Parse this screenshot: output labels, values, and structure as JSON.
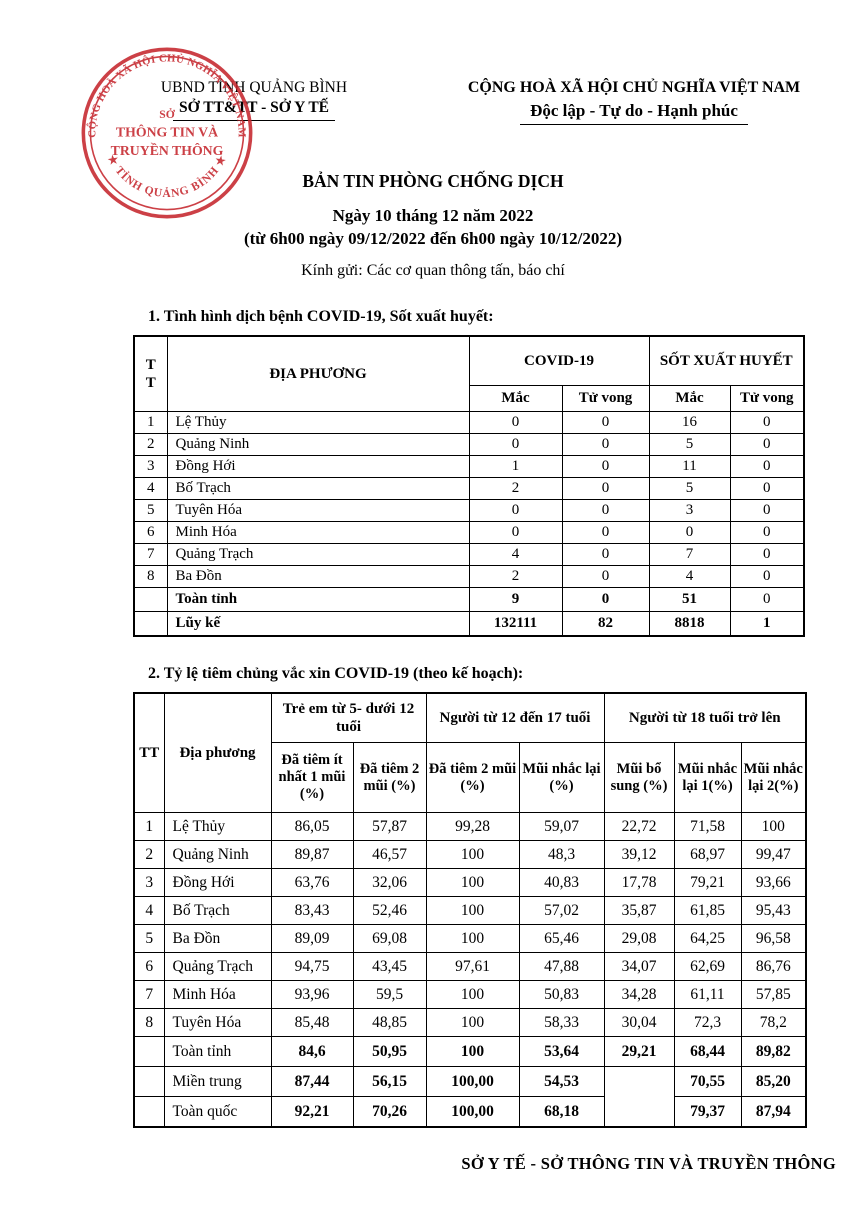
{
  "header": {
    "org": {
      "line1": "UBND TỈNH QUẢNG BÌNH",
      "line2": "SỞ TT&TT - SỞ Y TẾ"
    },
    "national": {
      "line1": "CỘNG HOÀ XÃ HỘI CHỦ NGHĨA VIỆT NAM",
      "line2": "Độc lập - Tự do - Hạnh phúc"
    },
    "stamp": {
      "ring_text": "CỘNG HOÀ XÃ HỘI CHỦ NGHĨA VIỆT NAM",
      "bottom_text": "TỈNH QUẢNG BÌNH",
      "star_left": "★ ",
      "star_right": " ★",
      "center_line1": "SỞ",
      "center_line2": "THÔNG TIN VÀ",
      "center_line3": "TRUYỀN THÔNG",
      "color": "#c5262d"
    }
  },
  "title": {
    "main": "BẢN TIN PHÒNG CHỐNG DỊCH",
    "date_line": "Ngày 10 tháng 12 năm 2022",
    "time_range": "(từ 6h00 ngày 09/12/2022 đến 6h00 ngày 10/12/2022)",
    "recipient": "Kính gửi: Các cơ quan thông tấn, báo chí"
  },
  "section1": {
    "heading": "1. Tình hình dịch bệnh COVID-19, Sốt xuất huyết:",
    "table": {
      "headers": {
        "tt_lines": [
          "T",
          "T"
        ],
        "location": "ĐỊA PHƯƠNG",
        "covid_group": "COVID-19",
        "dengue_group": "SỐT XUẤT HUYẾT",
        "cases": "Mắc",
        "deaths": "Tử vong"
      },
      "rows": [
        {
          "tt": "1",
          "name": "Lệ Thủy",
          "covid_cases": "0",
          "covid_deaths": "0",
          "dengue_cases": "16",
          "dengue_deaths": "0"
        },
        {
          "tt": "2",
          "name": "Quảng Ninh",
          "covid_cases": "0",
          "covid_deaths": "0",
          "dengue_cases": "5",
          "dengue_deaths": "0"
        },
        {
          "tt": "3",
          "name": "Đồng Hới",
          "covid_cases": "1",
          "covid_deaths": "0",
          "dengue_cases": "11",
          "dengue_deaths": "0"
        },
        {
          "tt": "4",
          "name": "Bố Trạch",
          "covid_cases": "2",
          "covid_deaths": "0",
          "dengue_cases": "5",
          "dengue_deaths": "0"
        },
        {
          "tt": "5",
          "name": "Tuyên Hóa",
          "covid_cases": "0",
          "covid_deaths": "0",
          "dengue_cases": "3",
          "dengue_deaths": "0"
        },
        {
          "tt": "6",
          "name": "Minh Hóa",
          "covid_cases": "0",
          "covid_deaths": "0",
          "dengue_cases": "0",
          "dengue_deaths": "0"
        },
        {
          "tt": "7",
          "name": "Quảng Trạch",
          "covid_cases": "4",
          "covid_deaths": "0",
          "dengue_cases": "7",
          "dengue_deaths": "0"
        },
        {
          "tt": "8",
          "name": "Ba Đồn",
          "covid_cases": "2",
          "covid_deaths": "0",
          "dengue_cases": "4",
          "dengue_deaths": "0"
        }
      ],
      "summary": {
        "province": {
          "name": "Toàn tỉnh",
          "covid_cases": "9",
          "covid_deaths": "0",
          "dengue_cases": "51",
          "dengue_deaths": "0"
        },
        "cumulative": {
          "name": "Lũy kế",
          "covid_cases": "132111",
          "covid_deaths": "82",
          "dengue_cases": "8818",
          "dengue_deaths": "1"
        }
      }
    }
  },
  "section2": {
    "heading": "2. Tỷ lệ tiêm chủng vắc xin COVID-19 (theo kế hoạch):",
    "table": {
      "headers": {
        "tt": "TT",
        "location": "Địa phương",
        "group_children": "Trẻ em từ 5- dưới 12 tuổi",
        "group_teens": "Người từ 12 đến 17 tuổi",
        "group_adults": "Người từ 18 tuổi trở lên",
        "child_dose1": "Đã tiêm ít nhất 1 mũi (%)",
        "child_dose2": "Đã tiêm 2 mũi (%)",
        "teen_dose2": "Đã tiêm 2 mũi (%)",
        "teen_booster": "Mũi nhắc lại (%)",
        "adult_additional": "Mũi bổ sung (%)",
        "adult_booster1": "Mũi nhắc lại 1(%)",
        "adult_booster2": "Mũi nhắc lại 2(%)"
      },
      "rows": [
        {
          "tt": "1",
          "name": "Lệ Thủy",
          "c1": "86,05",
          "c2": "57,87",
          "c3": "99,28",
          "c4": "59,07",
          "c5": "22,72",
          "c6": "71,58",
          "c7": "100"
        },
        {
          "tt": "2",
          "name": "Quảng Ninh",
          "c1": "89,87",
          "c2": "46,57",
          "c3": "100",
          "c4": "48,3",
          "c5": "39,12",
          "c6": "68,97",
          "c7": "99,47"
        },
        {
          "tt": "3",
          "name": "Đồng Hới",
          "c1": "63,76",
          "c2": "32,06",
          "c3": "100",
          "c4": "40,83",
          "c5": "17,78",
          "c6": "79,21",
          "c7": "93,66"
        },
        {
          "tt": "4",
          "name": "Bố Trạch",
          "c1": "83,43",
          "c2": "52,46",
          "c3": "100",
          "c4": "57,02",
          "c5": "35,87",
          "c6": "61,85",
          "c7": "95,43"
        },
        {
          "tt": "5",
          "name": "Ba Đồn",
          "c1": "89,09",
          "c2": "69,08",
          "c3": "100",
          "c4": "65,46",
          "c5": "29,08",
          "c6": "64,25",
          "c7": "96,58"
        },
        {
          "tt": "6",
          "name": "Quảng Trạch",
          "c1": "94,75",
          "c2": "43,45",
          "c3": "97,61",
          "c4": "47,88",
          "c5": "34,07",
          "c6": "62,69",
          "c7": "86,76"
        },
        {
          "tt": "7",
          "name": "Minh Hóa",
          "c1": "93,96",
          "c2": "59,5",
          "c3": "100",
          "c4": "50,83",
          "c5": "34,28",
          "c6": "61,11",
          "c7": "57,85"
        },
        {
          "tt": "8",
          "name": "Tuyên Hóa",
          "c1": "85,48",
          "c2": "48,85",
          "c3": "100",
          "c4": "58,33",
          "c5": "30,04",
          "c6": "72,3",
          "c7": "78,2"
        }
      ],
      "summary": {
        "province": {
          "name": "Toàn tỉnh",
          "c1": "84,6",
          "c2": "50,95",
          "c3": "100",
          "c4": "53,64",
          "c5": "29,21",
          "c6": "68,44",
          "c7": "89,82"
        },
        "region": {
          "name": "Miền trung",
          "c1": "87,44",
          "c2": "56,15",
          "c3": "100,00",
          "c4": "54,53",
          "c5": "",
          "c6": "70,55",
          "c7": "85,20"
        },
        "national": {
          "name": "Toàn quốc",
          "c1": "92,21",
          "c2": "70,26",
          "c3": "100,00",
          "c4": "68,18",
          "c6": "79,37",
          "c7": "87,94"
        }
      }
    }
  },
  "footer": {
    "signature": "SỞ Y TẾ -  SỞ THÔNG TIN VÀ TRUYỀN THÔNG"
  }
}
